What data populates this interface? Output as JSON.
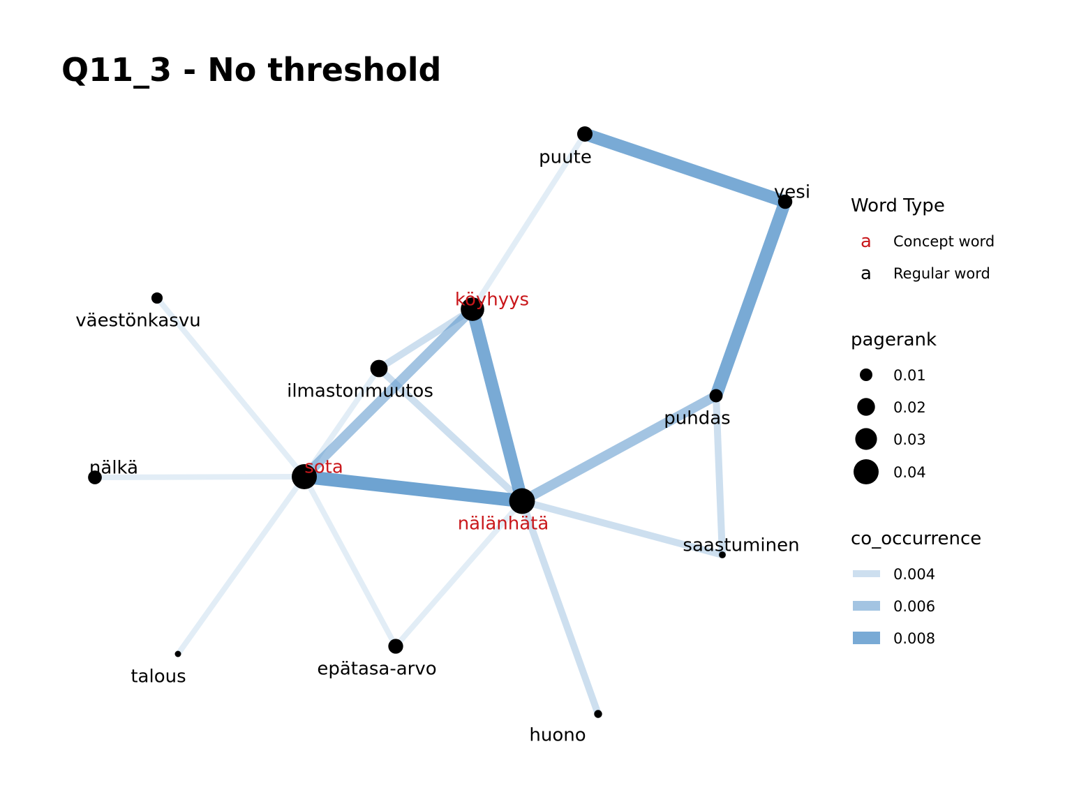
{
  "title": "Q11_3 - No threshold",
  "colors": {
    "concept": "#C9171B",
    "regular": "#000000",
    "node_fill": "#000000",
    "edge": "#4A8CC6"
  },
  "chart_data": {
    "type": "network",
    "nodes": [
      {
        "id": "puute",
        "label": "puute",
        "type": "regular",
        "pagerank": 0.015
      },
      {
        "id": "vesi",
        "label": "vesi",
        "type": "regular",
        "pagerank": 0.013
      },
      {
        "id": "köyhyys",
        "label": "köyhyys",
        "type": "concept",
        "pagerank": 0.035
      },
      {
        "id": "väestönkasvu",
        "label": "väestönkasvu",
        "type": "regular",
        "pagerank": 0.008
      },
      {
        "id": "ilmastonmuutos",
        "label": "ilmastonmuutos",
        "type": "regular",
        "pagerank": 0.019
      },
      {
        "id": "puhdas",
        "label": "puhdas",
        "type": "regular",
        "pagerank": 0.011
      },
      {
        "id": "nälkä",
        "label": "nälkä",
        "type": "regular",
        "pagerank": 0.012
      },
      {
        "id": "sota",
        "label": "sota",
        "type": "concept",
        "pagerank": 0.04
      },
      {
        "id": "nälänhätä",
        "label": "nälänhätä",
        "type": "concept",
        "pagerank": 0.042
      },
      {
        "id": "saastuminen",
        "label": "saastuminen",
        "type": "regular",
        "pagerank": 0.003
      },
      {
        "id": "talous",
        "label": "talous",
        "type": "regular",
        "pagerank": 0.002
      },
      {
        "id": "epätasa-arvo",
        "label": "epätasa-arvo",
        "type": "regular",
        "pagerank": 0.014
      },
      {
        "id": "huono",
        "label": "huono",
        "type": "regular",
        "pagerank": 0.004
      }
    ],
    "edges": [
      {
        "source": "puute",
        "target": "vesi",
        "co_occurrence": 0.008
      },
      {
        "source": "vesi",
        "target": "puhdas",
        "co_occurrence": 0.008
      },
      {
        "source": "puute",
        "target": "köyhyys",
        "co_occurrence": 0.003
      },
      {
        "source": "köyhyys",
        "target": "nälänhätä",
        "co_occurrence": 0.008
      },
      {
        "source": "sota",
        "target": "nälänhätä",
        "co_occurrence": 0.0085
      },
      {
        "source": "köyhyys",
        "target": "sota",
        "co_occurrence": 0.006
      },
      {
        "source": "köyhyys",
        "target": "ilmastonmuutos",
        "co_occurrence": 0.004
      },
      {
        "source": "ilmastonmuutos",
        "target": "sota",
        "co_occurrence": 0.003
      },
      {
        "source": "ilmastonmuutos",
        "target": "nälänhätä",
        "co_occurrence": 0.004
      },
      {
        "source": "puhdas",
        "target": "nälänhätä",
        "co_occurrence": 0.006
      },
      {
        "source": "puhdas",
        "target": "saastuminen",
        "co_occurrence": 0.004
      },
      {
        "source": "nälänhätä",
        "target": "saastuminen",
        "co_occurrence": 0.004
      },
      {
        "source": "nälänhätä",
        "target": "huono",
        "co_occurrence": 0.004
      },
      {
        "source": "nälänhätä",
        "target": "epätasa-arvo",
        "co_occurrence": 0.003
      },
      {
        "source": "sota",
        "target": "epätasa-arvo",
        "co_occurrence": 0.003
      },
      {
        "source": "sota",
        "target": "talous",
        "co_occurrence": 0.003
      },
      {
        "source": "sota",
        "target": "väestönkasvu",
        "co_occurrence": 0.003
      },
      {
        "source": "sota",
        "target": "nälkä",
        "co_occurrence": 0.003
      }
    ]
  },
  "legend": {
    "word_type": {
      "title": "Word Type",
      "key_glyph": "a",
      "items": [
        {
          "label": "Concept word",
          "type": "concept"
        },
        {
          "label": "Regular word",
          "type": "regular"
        }
      ]
    },
    "pagerank": {
      "title": "pagerank",
      "items": [
        {
          "label": "0.01",
          "value": 0.01
        },
        {
          "label": "0.02",
          "value": 0.02
        },
        {
          "label": "0.03",
          "value": 0.03
        },
        {
          "label": "0.04",
          "value": 0.04
        }
      ]
    },
    "co_occurrence": {
      "title": "co_occurrence",
      "items": [
        {
          "label": "0.004",
          "value": 0.004
        },
        {
          "label": "0.006",
          "value": 0.006
        },
        {
          "label": "0.008",
          "value": 0.008
        }
      ]
    }
  }
}
